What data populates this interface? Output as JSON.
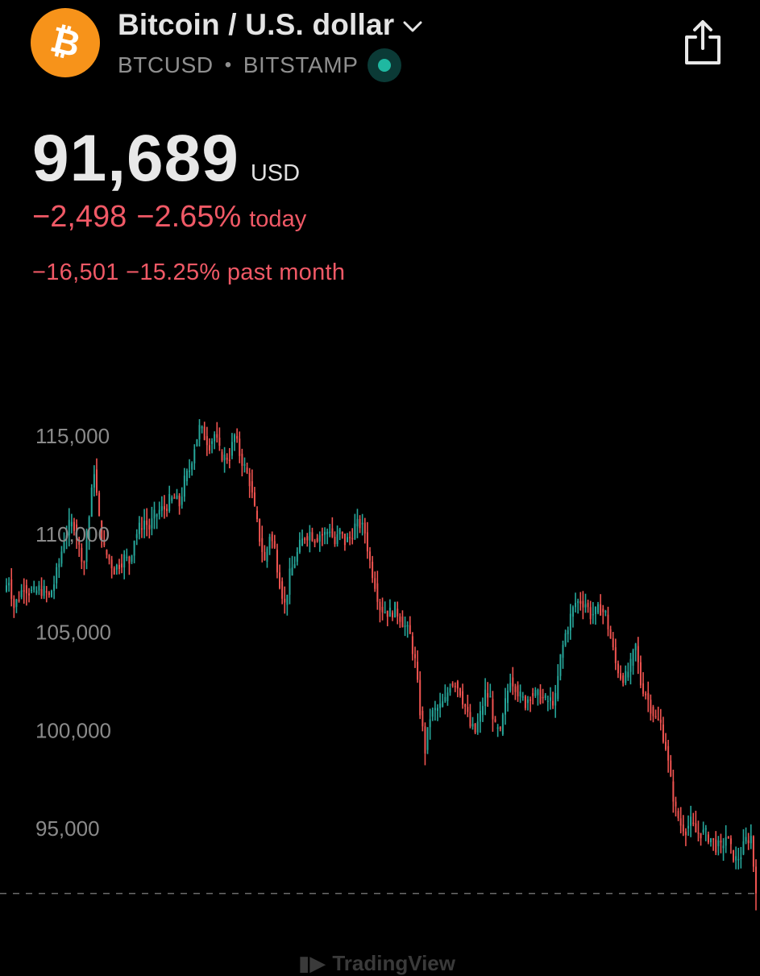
{
  "header": {
    "title": "Bitcoin / U.S. dollar",
    "symbol": "BTCUSD",
    "separator": "•",
    "exchange": "BITSTAMP",
    "logo_icon": "bitcoin-icon",
    "dropdown_icon": "chevron-down-icon",
    "share_icon": "share-icon",
    "status_icon": "market-open-dot-icon"
  },
  "quote": {
    "price": "91,689",
    "currency": "USD",
    "change_today_abs": "−2,498",
    "change_today_pct": "−2.65%",
    "change_today_label": "today",
    "change_month": "−16,501 −15.25% past month"
  },
  "colors": {
    "background": "#000000",
    "up": "#26a69a",
    "down": "#ef5350",
    "negative_text": "#f05966",
    "logo": "#f7931a",
    "axis_text": "#8a8a8a"
  },
  "watermark": "TradingView",
  "chart_data": {
    "type": "candlestick",
    "y_ticks": [
      "115,000",
      "110,000",
      "105,000",
      "100,000",
      "95,000"
    ],
    "y_tick_values": [
      115000,
      110000,
      105000,
      100000,
      95000
    ],
    "ylim": [
      90400,
      117100
    ],
    "last_price_line": 91689,
    "grid": false,
    "close_path": [
      107700,
      106300,
      106800,
      107400,
      107100,
      107000,
      107200,
      107100,
      106800,
      107500,
      108500,
      109800,
      110400,
      110500,
      109300,
      108600,
      110900,
      113300,
      110700,
      109200,
      108700,
      108200,
      108500,
      108800,
      108600,
      109800,
      110300,
      110700,
      110300,
      110900,
      111200,
      111300,
      111700,
      111800,
      111500,
      112700,
      113300,
      114500,
      115400,
      115000,
      114600,
      115100,
      114200,
      113900,
      114000,
      115000,
      114100,
      113400,
      112700,
      111200,
      109800,
      108600,
      110000,
      109200,
      107600,
      106400,
      107900,
      108600,
      109400,
      109900,
      110100,
      109800,
      110000,
      110000,
      110300,
      109500,
      110100,
      109600,
      109800,
      110400,
      110500,
      110100,
      108600,
      107500,
      106300,
      106100,
      106000,
      106200,
      105800,
      105300,
      104800,
      103500,
      101000,
      99000,
      100700,
      101000,
      101200,
      101500,
      102400,
      102500,
      102000,
      101200,
      100200,
      99900,
      100800,
      101900,
      101600,
      100100,
      99800,
      101400,
      102700,
      102300,
      101700,
      101400,
      101900,
      101800,
      101700,
      101500,
      101500,
      101600,
      103700,
      104900,
      105800,
      106500,
      106600,
      106500,
      105900,
      106000,
      106200,
      105900,
      104700,
      103400,
      102800,
      102700,
      103300,
      104300,
      102400,
      101900,
      101200,
      100600,
      100300,
      99200,
      97400,
      95900,
      95200,
      95000,
      95300,
      94800,
      94800,
      94700,
      94500,
      94100,
      94000,
      94600,
      93900,
      93400,
      93700,
      94400,
      94600,
      91700
    ]
  }
}
